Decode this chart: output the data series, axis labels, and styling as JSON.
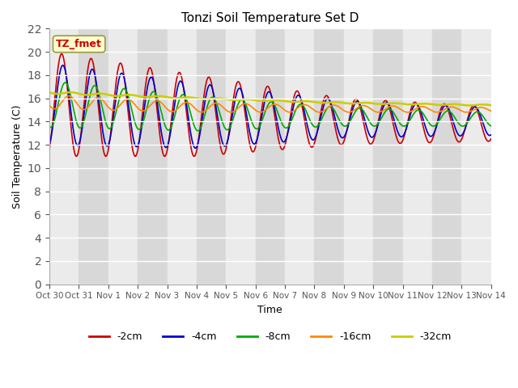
{
  "title": "Tonzi Soil Temperature Set D",
  "xlabel": "Time",
  "ylabel": "Soil Temperature (C)",
  "xlim": [
    0,
    15
  ],
  "ylim": [
    0,
    22
  ],
  "yticks": [
    0,
    2,
    4,
    6,
    8,
    10,
    12,
    14,
    16,
    18,
    20,
    22
  ],
  "xtick_labels": [
    "Oct 30",
    "Oct 31",
    "Nov 1",
    "Nov 2",
    "Nov 3",
    "Nov 4",
    "Nov 5",
    "Nov 6",
    "Nov 7",
    "Nov 8",
    "Nov 9",
    "Nov 10",
    "Nov 11",
    "Nov 12",
    "Nov 13",
    "Nov 14"
  ],
  "xtick_positions": [
    0,
    1,
    2,
    3,
    4,
    5,
    6,
    7,
    8,
    9,
    10,
    11,
    12,
    13,
    14,
    15
  ],
  "series": {
    "-2cm": {
      "color": "#cc0000",
      "lw": 1.2
    },
    "-4cm": {
      "color": "#0000cc",
      "lw": 1.2
    },
    "-8cm": {
      "color": "#00aa00",
      "lw": 1.2
    },
    "-16cm": {
      "color": "#ff8800",
      "lw": 1.2
    },
    "-32cm": {
      "color": "#cccc00",
      "lw": 1.8
    }
  },
  "annotation_text": "TZ_fmet",
  "annotation_box_color": "#ffffcc",
  "annotation_text_color": "#cc0000",
  "bg_color_light": "#ebebeb",
  "bg_color_dark": "#d8d8d8"
}
